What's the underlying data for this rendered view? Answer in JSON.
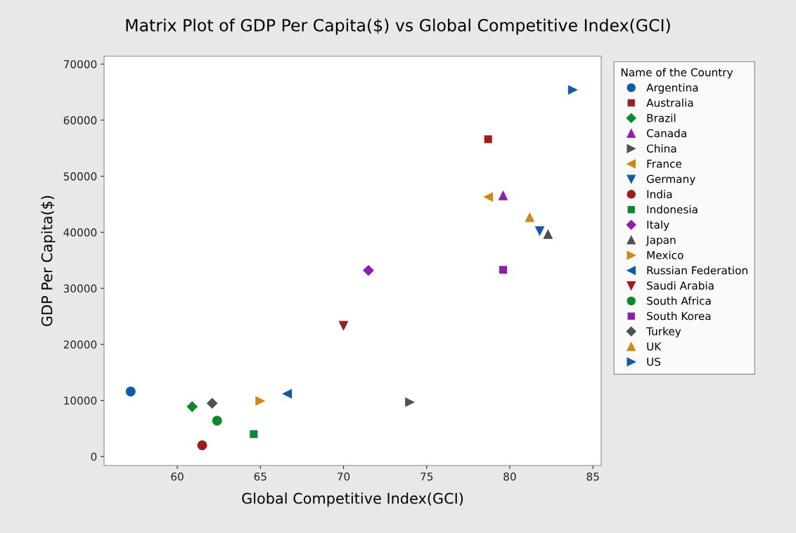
{
  "chart_data": {
    "type": "scatter",
    "title": "Matrix Plot of GDP Per Capita($) vs Global Competitive Index(GCI)",
    "xlabel": "Global Competitive Index(GCI)",
    "ylabel": "GDP Per Capita($)",
    "legend_title": "Name of the Country",
    "legend": "right",
    "grid": false,
    "xlim": [
      55.6,
      85.5
    ],
    "ylim": [
      -1600,
      71400
    ],
    "xticks": [
      60,
      65,
      70,
      75,
      80,
      85
    ],
    "yticks": [
      0,
      10000,
      20000,
      30000,
      40000,
      50000,
      60000,
      70000
    ],
    "series": [
      {
        "name": "Argentina",
        "color": "#0b5cad",
        "marker": "circle",
        "x": [
          57.2
        ],
        "values": [
          11600
        ]
      },
      {
        "name": "Australia",
        "color": "#a01b1b",
        "marker": "square",
        "x": [
          78.7
        ],
        "values": [
          56600
        ]
      },
      {
        "name": "Brazil",
        "color": "#0a8a2a",
        "marker": "diamond",
        "x": [
          60.9
        ],
        "values": [
          8900
        ]
      },
      {
        "name": "Canada",
        "color": "#8b1fb5",
        "marker": "triangle-up",
        "x": [
          79.6
        ],
        "values": [
          46600
        ]
      },
      {
        "name": "China",
        "color": "#505050",
        "marker": "triangle-right",
        "x": [
          74.0
        ],
        "values": [
          9700
        ]
      },
      {
        "name": "France",
        "color": "#d4870f",
        "marker": "triangle-left",
        "x": [
          78.7
        ],
        "values": [
          46300
        ]
      },
      {
        "name": "Germany",
        "color": "#0b5cad",
        "marker": "triangle-down",
        "x": [
          81.8
        ],
        "values": [
          40200
        ]
      },
      {
        "name": "India",
        "color": "#a01b1b",
        "marker": "circle",
        "x": [
          61.5
        ],
        "values": [
          2000
        ]
      },
      {
        "name": "Indonesia",
        "color": "#0a8a2a",
        "marker": "square",
        "x": [
          64.6
        ],
        "values": [
          4000
        ]
      },
      {
        "name": "Italy",
        "color": "#8b1fb5",
        "marker": "diamond",
        "x": [
          71.5
        ],
        "values": [
          33200
        ]
      },
      {
        "name": "Japan",
        "color": "#505050",
        "marker": "triangle-up",
        "x": [
          82.3
        ],
        "values": [
          39700
        ]
      },
      {
        "name": "Mexico",
        "color": "#d4870f",
        "marker": "triangle-right",
        "x": [
          65.0
        ],
        "values": [
          9900
        ]
      },
      {
        "name": "Russian Federation",
        "color": "#0b5cad",
        "marker": "triangle-left",
        "x": [
          66.6
        ],
        "values": [
          11200
        ]
      },
      {
        "name": "Saudi Arabia",
        "color": "#a01b1b",
        "marker": "triangle-down",
        "x": [
          70.0
        ],
        "values": [
          23300
        ]
      },
      {
        "name": "South Africa",
        "color": "#0a8a2a",
        "marker": "circle",
        "x": [
          62.4
        ],
        "values": [
          6400
        ]
      },
      {
        "name": "South Korea",
        "color": "#8b1fb5",
        "marker": "square",
        "x": [
          79.6
        ],
        "values": [
          33300
        ]
      },
      {
        "name": "Turkey",
        "color": "#505050",
        "marker": "diamond",
        "x": [
          62.1
        ],
        "values": [
          9500
        ]
      },
      {
        "name": "UK",
        "color": "#d4870f",
        "marker": "triangle-up",
        "x": [
          81.2
        ],
        "values": [
          42700
        ]
      },
      {
        "name": "US",
        "color": "#0b5cad",
        "marker": "triangle-right",
        "x": [
          83.8
        ],
        "values": [
          65400
        ]
      }
    ]
  }
}
